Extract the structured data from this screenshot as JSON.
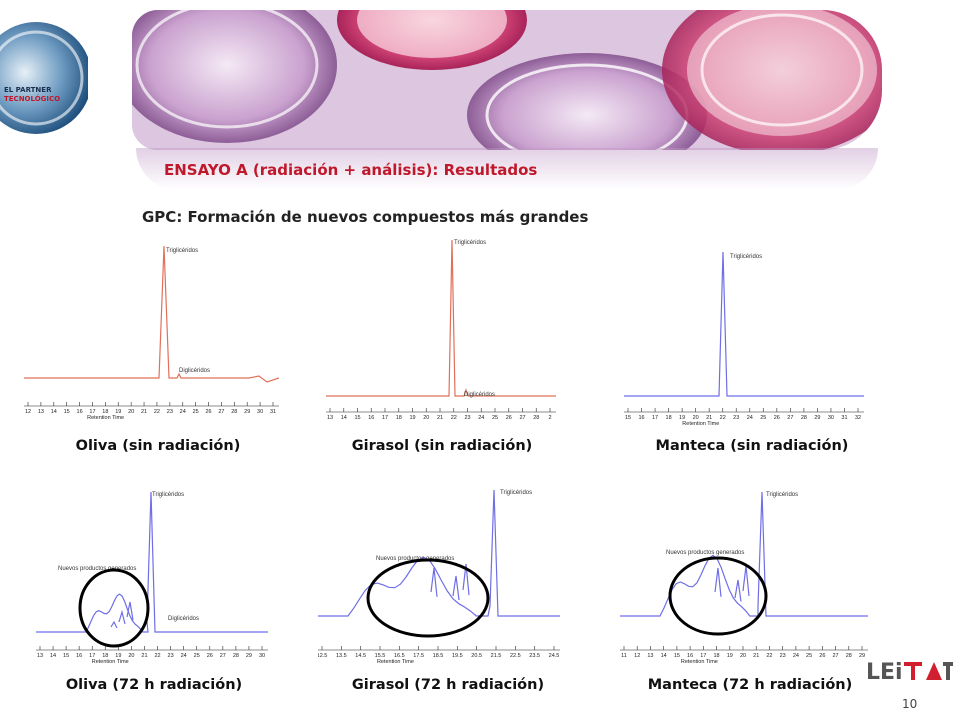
{
  "logo_badge": {
    "line1": "EL PARTNER",
    "line2": "TECNOLÓGICO"
  },
  "header": {
    "title": "ENSAYO A (radiación + análisis): Resultados",
    "subtitle": "GPC: Formación de nuevos compuestos más grandes"
  },
  "charts": [
    {
      "id": "oliva-sin",
      "caption": "Oliva (sin radiación)",
      "color": "#e0705a",
      "peak_label": "Triglicéridos",
      "minor_label": "Diglicéridos",
      "new_label": "",
      "xticks": [
        "12",
        "13",
        "14",
        "15",
        "16",
        "17",
        "18",
        "19",
        "20",
        "21",
        "22",
        "23",
        "24",
        "25",
        "26",
        "27",
        "28",
        "29",
        "30",
        "31"
      ],
      "axis_title": "Retention Time"
    },
    {
      "id": "girasol-sin",
      "caption": "Girasol (sin radiación)",
      "color": "#e0705a",
      "peak_label": "Triglicéridos",
      "minor_label": "Diglicéridos",
      "new_label": "",
      "xticks": [
        "13",
        "14",
        "15",
        "16",
        "17",
        "18",
        "19",
        "20",
        "21",
        "22",
        "23",
        "24",
        "25",
        "26",
        "27",
        "28",
        "2"
      ],
      "axis_title": "Retention Time"
    },
    {
      "id": "manteca-sin",
      "caption": "Manteca (sin radiación)",
      "color": "#6e6ee6",
      "peak_label": "Triglicéridos",
      "minor_label": "",
      "new_label": "",
      "xticks": [
        "15",
        "16",
        "17",
        "18",
        "19",
        "20",
        "21",
        "22",
        "23",
        "24",
        "25",
        "26",
        "27",
        "28",
        "29",
        "30",
        "31",
        "32"
      ],
      "axis_title": "Retention Time"
    },
    {
      "id": "oliva-72",
      "caption": "Oliva (72 h radiación)",
      "color": "#6e6ee6",
      "peak_label": "Triglicéridos",
      "minor_label": "Diglicéridos",
      "new_label": "Nuevos productos generados",
      "xticks": [
        "13",
        "14",
        "15",
        "16",
        "17",
        "18",
        "19",
        "20",
        "21",
        "22",
        "23",
        "24",
        "25",
        "26",
        "27",
        "28",
        "29",
        "30"
      ],
      "axis_title": "Retention Time"
    },
    {
      "id": "girasol-72",
      "caption": "Girasol (72 h radiación)",
      "color": "#6e6ee6",
      "peak_label": "Triglicéridos",
      "minor_label": "",
      "new_label": "Nuevos productos generados",
      "xticks": [
        "12.5",
        "13.5",
        "14.5",
        "15.5",
        "16.5",
        "17.5",
        "18.5",
        "19.5",
        "20.5",
        "21.5",
        "22.5",
        "23.5",
        "24.5"
      ],
      "axis_title": "Retention Time"
    },
    {
      "id": "manteca-72",
      "caption": "Manteca (72 h radiación)",
      "color": "#6e6ee6",
      "peak_label": "Triglicéridos",
      "minor_label": "",
      "new_label": "Nuevos productos generados",
      "xticks": [
        "11",
        "12",
        "13",
        "14",
        "15",
        "16",
        "17",
        "18",
        "19",
        "20",
        "21",
        "22",
        "23",
        "24",
        "25",
        "26",
        "27",
        "28",
        "29"
      ],
      "axis_title": "Retention Time"
    }
  ],
  "footer": {
    "brand": "LEITAT",
    "page_number": "10"
  },
  "colors": {
    "title_red": "#c0182b",
    "circle": "#000000"
  }
}
